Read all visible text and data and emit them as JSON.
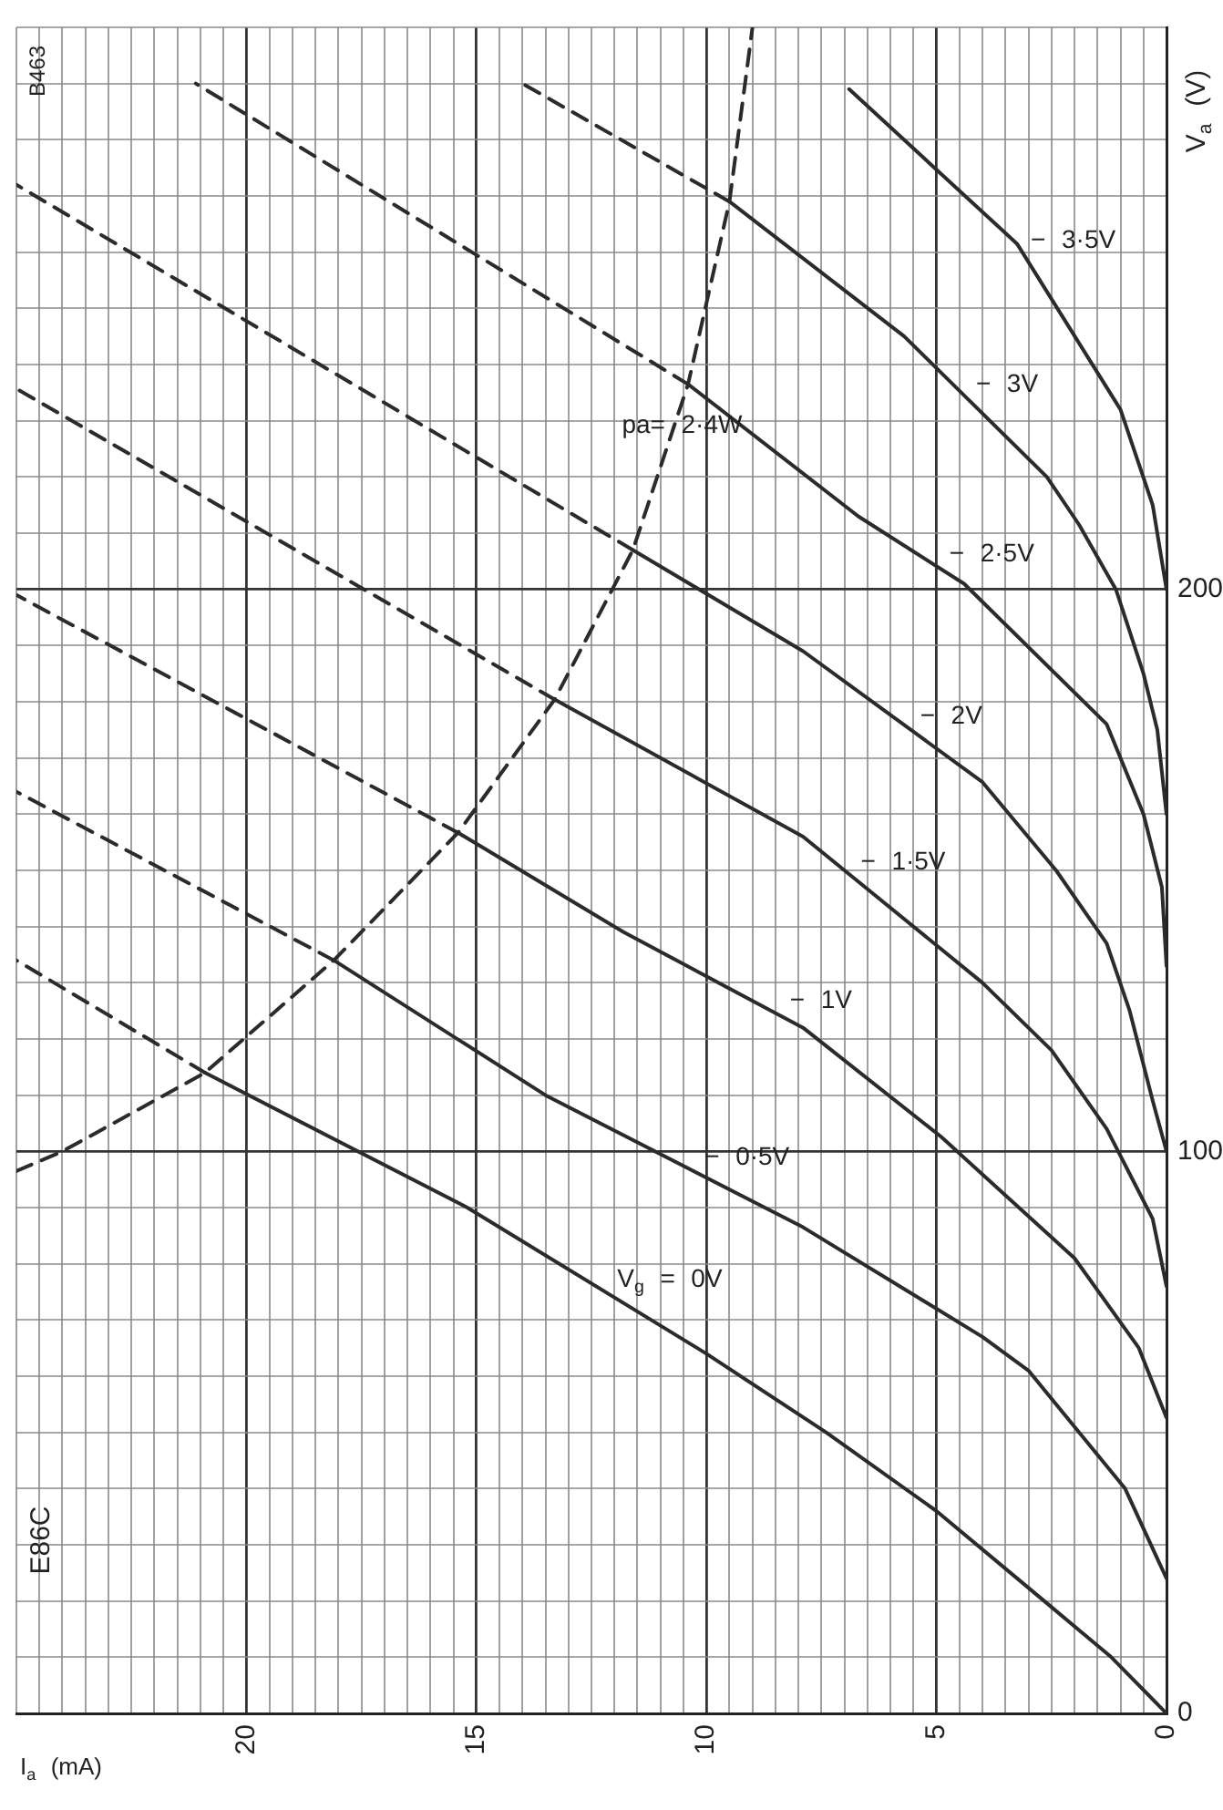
{
  "chart_data": {
    "type": "line",
    "title": "E86C",
    "xlabel": "I$_{a}$ (mA)",
    "ylabel": "V$_{a}$ (V)",
    "xlim": [
      25,
      0
    ],
    "ylim": [
      0,
      300
    ],
    "yticks": [
      0,
      {
        "value": 10,
        "label": null
      },
      {
        "value": 20,
        "label": null
      },
      {
        "value": 30,
        "label": null
      },
      {
        "value": 40,
        "label": null
      },
      {
        "value": 50,
        "label": null
      },
      {
        "value": 60,
        "label": null
      },
      {
        "value": 70,
        "label": null
      },
      {
        "value": 80,
        "label": null
      },
      {
        "value": 90,
        "label": null
      },
      100,
      {
        "value": 110,
        "label": null
      },
      {
        "value": 120,
        "label": null
      },
      {
        "value": 130,
        "label": null
      },
      {
        "value": 140,
        "label": null
      },
      {
        "value": 150,
        "label": null
      },
      {
        "value": 160,
        "label": null
      },
      {
        "value": 170,
        "label": null
      },
      {
        "value": 180,
        "label": null
      },
      {
        "value": 190,
        "label": null
      },
      200,
      {
        "value": 210,
        "label": null
      },
      {
        "value": 220,
        "label": null
      },
      {
        "value": 230,
        "label": null
      },
      {
        "value": 240,
        "label": null
      },
      {
        "value": 250,
        "label": null
      },
      {
        "value": 260,
        "label": null
      },
      {
        "value": 270,
        "label": null
      },
      {
        "value": 280,
        "label": null
      },
      {
        "value": 290,
        "label": null
      },
      {
        "value": 300,
        "label": null
      }
    ],
    "xticks": [
      0,
      {
        "value": 0.5,
        "label": null
      },
      {
        "value": 1,
        "label": null
      },
      {
        "value": 1.5,
        "label": null
      },
      {
        "value": 2,
        "label": null
      },
      {
        "value": 2.5,
        "label": null
      },
      {
        "value": 3,
        "label": null
      },
      {
        "value": 3.5,
        "label": null
      },
      {
        "value": 4,
        "label": null
      },
      {
        "value": 4.5,
        "label": null
      },
      5,
      {
        "value": 5.5,
        "label": null
      },
      {
        "value": 6,
        "label": null
      },
      {
        "value": 6.5,
        "label": null
      },
      {
        "value": 7,
        "label": null
      },
      {
        "value": 7.5,
        "label": null
      },
      {
        "value": 8,
        "label": null
      },
      {
        "value": 8.5,
        "label": null
      },
      {
        "value": 9,
        "label": null
      },
      {
        "value": 9.5,
        "label": null
      },
      10,
      {
        "value": 10.5,
        "label": null
      },
      {
        "value": 11,
        "label": null
      },
      {
        "value": 11.5,
        "label": null
      },
      {
        "value": 12,
        "label": null
      },
      {
        "value": 12.5,
        "label": null
      },
      {
        "value": 13,
        "label": null
      },
      {
        "value": 13.5,
        "label": null
      },
      {
        "value": 14,
        "label": null
      },
      {
        "value": 14.5,
        "label": null
      },
      15,
      {
        "value": 15.5,
        "label": null
      },
      {
        "value": 16,
        "label": null
      },
      {
        "value": 16.5,
        "label": null
      },
      {
        "value": 17,
        "label": null
      },
      {
        "value": 17.5,
        "label": null
      },
      {
        "value": 18,
        "label": null
      },
      {
        "value": 18.5,
        "label": null
      },
      {
        "value": 19,
        "label": null
      },
      {
        "value": 19.5,
        "label": null
      },
      20,
      {
        "value": 20.5,
        "label": null
      },
      {
        "value": 21,
        "label": null
      },
      {
        "value": 21.5,
        "label": null
      },
      {
        "value": 22,
        "label": null
      },
      {
        "value": 22.5,
        "label": null
      },
      {
        "value": 23,
        "label": null
      },
      {
        "value": 23.5,
        "label": null
      },
      {
        "value": 24,
        "label": null
      },
      {
        "value": 24.5,
        "label": null
      },
      {
        "value": 25,
        "label": null
      }
    ],
    "grid": true,
    "legend": false,
    "marker": "none",
    "series": [
      {
        "name": "V$_{g}$ = 0V",
        "color": "#2b2b2b",
        "line_style": "solid",
        "x": [
          0,
          1.2,
          2.6,
          5,
          7.4,
          10,
          15.2,
          20.9
        ],
        "values": [
          0,
          10,
          19.6,
          36,
          50,
          64,
          90,
          114
        ]
      },
      {
        "color": "#2b2b2b",
        "line_style": "dashed",
        "x": [
          20.9,
          25
        ],
        "values": [
          114,
          134
        ]
      },
      {
        "name": "− 0·5V",
        "color": "#2b2b2b",
        "line_style": "solid",
        "x": [
          0,
          0.9,
          3,
          4,
          7.9,
          13.5,
          18.1
        ],
        "values": [
          24,
          40,
          61,
          67,
          86.5,
          110,
          134
        ]
      },
      {
        "color": "#2b2b2b",
        "line_style": "dashed",
        "x": [
          18.1,
          25
        ],
        "values": [
          134,
          164
        ]
      },
      {
        "name": "− 1V",
        "color": "#2b2b2b",
        "line_style": "solid",
        "x": [
          0,
          0.6,
          2,
          4.9,
          7.9,
          11.8,
          15.4
        ],
        "values": [
          52.6,
          65,
          81,
          102.6,
          122,
          139,
          156.7
        ]
      },
      {
        "color": "#2b2b2b",
        "line_style": "dashed",
        "x": [
          15.4,
          25
        ],
        "values": [
          156.7,
          199
        ]
      },
      {
        "name": "− 1·5V",
        "color": "#2b2b2b",
        "line_style": "solid",
        "x": [
          0,
          0.3,
          0.8,
          1.3,
          2.5,
          4,
          7.9,
          13.3
        ],
        "values": [
          76,
          88,
          96,
          104,
          118,
          130,
          156,
          180.4
        ]
      },
      {
        "color": "#2b2b2b",
        "line_style": "dashed",
        "x": [
          13.3,
          25
        ],
        "values": [
          180.4,
          235.7
        ]
      },
      {
        "name": "− 2V",
        "color": "#2b2b2b",
        "line_style": "solid",
        "x": [
          0,
          0.3,
          0.8,
          1.3,
          2.4,
          4,
          7.9,
          11.6
        ],
        "values": [
          100,
          109,
          125,
          137,
          150,
          165.7,
          189,
          207
        ]
      },
      {
        "color": "#2b2b2b",
        "line_style": "dashed",
        "x": [
          11.6,
          25
        ],
        "values": [
          207,
          272
        ]
      },
      {
        "name": "− 2·5V",
        "color": "#2b2b2b",
        "line_style": "solid",
        "x": [
          0,
          0.1,
          0.5,
          1.3,
          4.4,
          6.7,
          10.4
        ],
        "values": [
          133,
          147,
          160,
          176,
          201,
          213,
          236.5
        ]
      },
      {
        "color": "#2b2b2b",
        "line_style": "dashed",
        "x": [
          10.4,
          21.1
        ],
        "values": [
          236.5,
          290
        ]
      },
      {
        "name": "− 3V",
        "color": "#2b2b2b",
        "line_style": "solid",
        "x": [
          0,
          0.2,
          0.5,
          1.1,
          1.9,
          2.6,
          5.7,
          9.5
        ],
        "values": [
          160,
          175,
          185,
          200,
          211.5,
          220,
          245,
          269
        ]
      },
      {
        "color": "#2b2b2b",
        "line_style": "dashed",
        "x": [
          9.5,
          14
        ],
        "values": [
          269,
          290
        ]
      },
      {
        "name": "− 3·5V",
        "color": "#2b2b2b",
        "line_style": "solid",
        "x": [
          0,
          0.3,
          1,
          3.25,
          6.9
        ],
        "values": [
          200,
          215,
          232,
          261.5,
          289
        ]
      },
      {
        "name": "pa= 2·4W",
        "color": "#2b2b2b",
        "line_style": "dashed",
        "x": [
          25,
          24,
          20.9,
          18.1,
          15.4,
          13.3,
          11.6,
          10.4,
          9.5,
          9
        ],
        "values": [
          96.5,
          100,
          114,
          134,
          156.7,
          180.4,
          207,
          236.5,
          269,
          300
        ]
      }
    ],
    "annotations": [
      "B463"
    ]
  }
}
